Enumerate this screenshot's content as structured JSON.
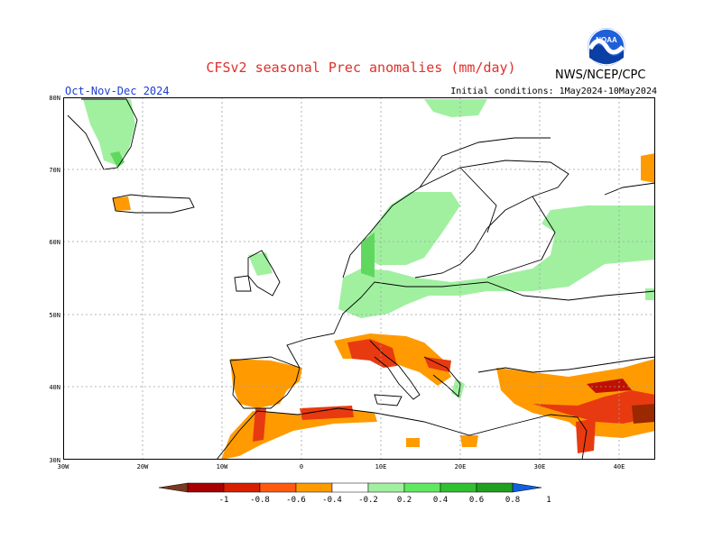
{
  "header": {
    "title": "CFSv2 seasonal Prec anomalies (mm/day)",
    "season": "Oct-Nov-Dec 2024",
    "initial_conditions": "Initial conditions: 1May2024-10May2024",
    "agency": "NWS/NCEP/CPC",
    "logo_text": "NOAA"
  },
  "map": {
    "lat_labels": [
      "80N",
      "70N",
      "60N",
      "50N",
      "40N",
      "30N"
    ],
    "lon_labels": [
      "30W",
      "20W",
      "10W",
      "0",
      "10E",
      "20E",
      "30E",
      "40E"
    ],
    "colors": {
      "dry_strong": "#9a2800",
      "dry_1": "#c01000",
      "dry_2": "#e83a10",
      "dry_3": "#ff9b00",
      "wet_1": "#a0f0a0",
      "wet_2": "#60d860",
      "land_line": "#000000",
      "grid": "#a0a0a0"
    }
  },
  "colorbar": {
    "labels": [
      "-1",
      "-0.8",
      "-0.6",
      "-0.4",
      "-0.2",
      "0.2",
      "0.4",
      "0.6",
      "0.8",
      "1"
    ],
    "colors": [
      "#7a3a20",
      "#a80000",
      "#d81f00",
      "#ff5a10",
      "#ff9b00",
      "#ffffff",
      "#a0f0a0",
      "#60e860",
      "#30c030",
      "#20a020",
      "#1060e0"
    ]
  }
}
